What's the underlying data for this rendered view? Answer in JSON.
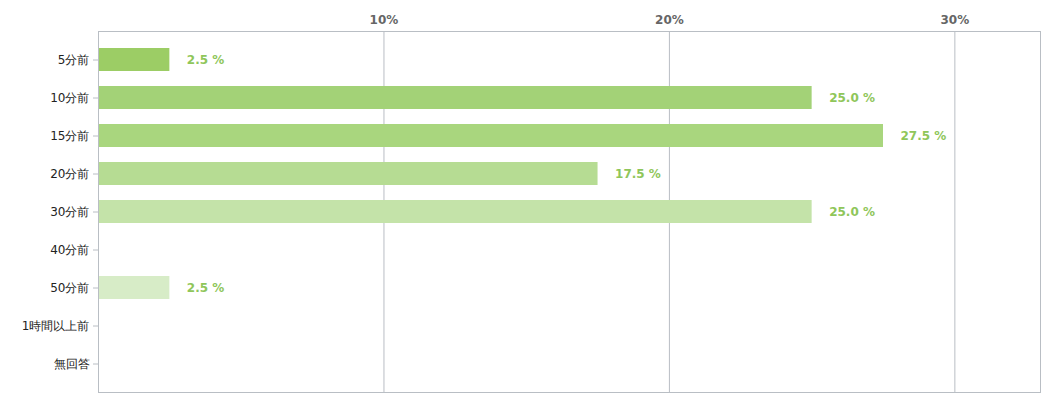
{
  "chart_data": {
    "type": "bar",
    "orientation": "horizontal",
    "categories": [
      "5分前",
      "10分前",
      "15分前",
      "20分前",
      "30分前",
      "40分前",
      "50分前",
      "1時間以上前",
      "無回答"
    ],
    "values": [
      2.5,
      25.0,
      27.5,
      17.5,
      25.0,
      null,
      2.5,
      null,
      null
    ],
    "value_labels": [
      "2.5 %",
      "25.0 %",
      "27.5 %",
      "17.5 %",
      "25.0 %",
      null,
      "2.5 %",
      null,
      null
    ],
    "colors": [
      "#9ccd65",
      "#a3d277",
      "#a9d67e",
      "#b6dc93",
      "#c4e3a9",
      "#cde8b8",
      "#d7ecc7",
      "#dff0d2",
      "#e6f3dc"
    ],
    "xlim": [
      0,
      33
    ],
    "xticks": [
      {
        "value": 10,
        "label": "10%"
      },
      {
        "value": 20,
        "label": "20%"
      },
      {
        "value": 30,
        "label": "30%"
      }
    ],
    "grid": true,
    "data_labels": true
  }
}
